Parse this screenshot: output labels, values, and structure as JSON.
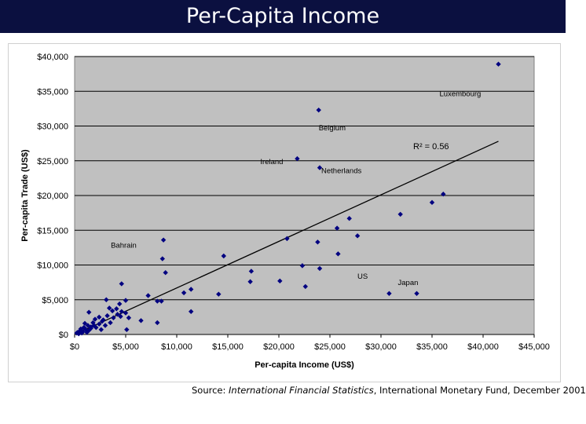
{
  "title": "Per-Capita Income",
  "source": {
    "prefix": "Source: ",
    "publication": "International Financial Statistics",
    "suffix": ", International Monetary Fund, December 2001"
  },
  "chart_data": {
    "type": "scatter",
    "xlabel": "Per-capita Income (US$)",
    "ylabel": "Per-capita Trade (US$)",
    "xlim": [
      0,
      45000
    ],
    "ylim": [
      0,
      40000
    ],
    "xticks": [
      0,
      5000,
      10000,
      15000,
      20000,
      25000,
      30000,
      35000,
      40000,
      45000
    ],
    "xtick_labels": [
      "$0",
      "$5,000",
      "$10,000",
      "$15,000",
      "$20,000",
      "$25,000",
      "$30,000",
      "$35,000",
      "$40,000",
      "$45,000"
    ],
    "yticks": [
      0,
      5000,
      10000,
      15000,
      20000,
      25000,
      30000,
      35000,
      40000
    ],
    "ytick_labels": [
      "$0",
      "$5,000",
      "$10,000",
      "$15,000",
      "$20,000",
      "$25,000",
      "$30,000",
      "$35,000",
      "$40,000"
    ],
    "grid": "horizontal",
    "background_color": "#c0c0c0",
    "marker_color": "#000080",
    "r_squared_label": "R² = 0.56",
    "trendline": {
      "x": [
        0,
        41500
      ],
      "y": [
        -500,
        27800
      ]
    },
    "annotations": [
      {
        "text": "Luxembourg",
        "x": 41500,
        "y": 38900
      },
      {
        "text": "Belgium",
        "x": 23900,
        "y": 32300
      },
      {
        "text": "Ireland",
        "x": 21800,
        "y": 25300
      },
      {
        "text": "Netherlands",
        "x": 24000,
        "y": 24000
      },
      {
        "text": "Bahrain",
        "x": 8700,
        "y": 13600
      },
      {
        "text": "US",
        "x": 24000,
        "y": 9500
      },
      {
        "text": "Japan",
        "x": 33500,
        "y": 5900
      }
    ],
    "points": [
      [
        41500,
        38900
      ],
      [
        23900,
        32300
      ],
      [
        21800,
        25300
      ],
      [
        24000,
        24000
      ],
      [
        36100,
        20200
      ],
      [
        35000,
        19000
      ],
      [
        31900,
        17300
      ],
      [
        26900,
        16700
      ],
      [
        25700,
        15300
      ],
      [
        27700,
        14200
      ],
      [
        20800,
        13800
      ],
      [
        23800,
        13300
      ],
      [
        8700,
        13600
      ],
      [
        14600,
        11300
      ],
      [
        25800,
        11600
      ],
      [
        8600,
        10900
      ],
      [
        22300,
        9900
      ],
      [
        24000,
        9500
      ],
      [
        17300,
        9100
      ],
      [
        8900,
        8900
      ],
      [
        20100,
        7700
      ],
      [
        17200,
        7600
      ],
      [
        22600,
        6900
      ],
      [
        4600,
        7300
      ],
      [
        11400,
        6500
      ],
      [
        10700,
        6000
      ],
      [
        14100,
        5800
      ],
      [
        7200,
        5600
      ],
      [
        30800,
        5900
      ],
      [
        33500,
        5900
      ],
      [
        3100,
        5000
      ],
      [
        5000,
        4900
      ],
      [
        8100,
        4800
      ],
      [
        8500,
        4800
      ],
      [
        4400,
        4400
      ],
      [
        3400,
        3800
      ],
      [
        1400,
        3200
      ],
      [
        3700,
        3400
      ],
      [
        4600,
        3300
      ],
      [
        5000,
        3100
      ],
      [
        11400,
        3300
      ],
      [
        4200,
        2900
      ],
      [
        3200,
        2700
      ],
      [
        4500,
        2600
      ],
      [
        2400,
        2500
      ],
      [
        3800,
        2400
      ],
      [
        5300,
        2400
      ],
      [
        2000,
        2200
      ],
      [
        6500,
        2000
      ],
      [
        8100,
        1700
      ],
      [
        2700,
        1900
      ],
      [
        3500,
        1700
      ],
      [
        1800,
        1700
      ],
      [
        1000,
        1600
      ],
      [
        2400,
        1500
      ],
      [
        3000,
        1300
      ],
      [
        1300,
        1300
      ],
      [
        1600,
        1100
      ],
      [
        2100,
        1000
      ],
      [
        900,
        1000
      ],
      [
        600,
        800
      ],
      [
        1100,
        700
      ],
      [
        2600,
        700
      ],
      [
        1400,
        600
      ],
      [
        500,
        500
      ],
      [
        800,
        400
      ],
      [
        1200,
        300
      ],
      [
        300,
        300
      ],
      [
        1600,
        900
      ],
      [
        5100,
        700
      ],
      [
        700,
        200
      ],
      [
        400,
        100
      ],
      [
        200,
        200
      ],
      [
        1000,
        900
      ],
      [
        1900,
        1300
      ],
      [
        2800,
        2100
      ],
      [
        4100,
        3700
      ]
    ]
  }
}
